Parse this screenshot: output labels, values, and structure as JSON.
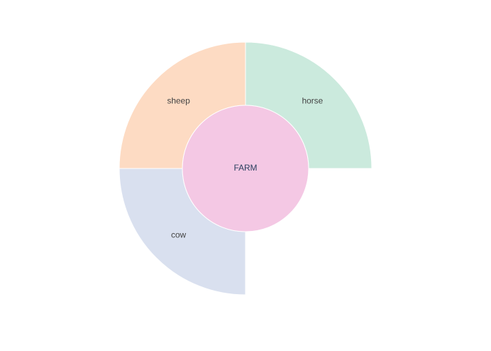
{
  "chart_data": {
    "type": "sunburst",
    "root": {
      "label": "FARM",
      "color": "#f4c8e4"
    },
    "children": [
      {
        "label": "horse",
        "start_angle_deg": 0,
        "end_angle_deg": 90,
        "color": "#cbeadd"
      },
      {
        "label": "sheep",
        "start_angle_deg": 270,
        "end_angle_deg": 360,
        "color": "#fddbc3"
      },
      {
        "label": "cow",
        "start_angle_deg": 180,
        "end_angle_deg": 270,
        "color": "#d9e0ef"
      }
    ],
    "title": "",
    "legend": "none"
  }
}
